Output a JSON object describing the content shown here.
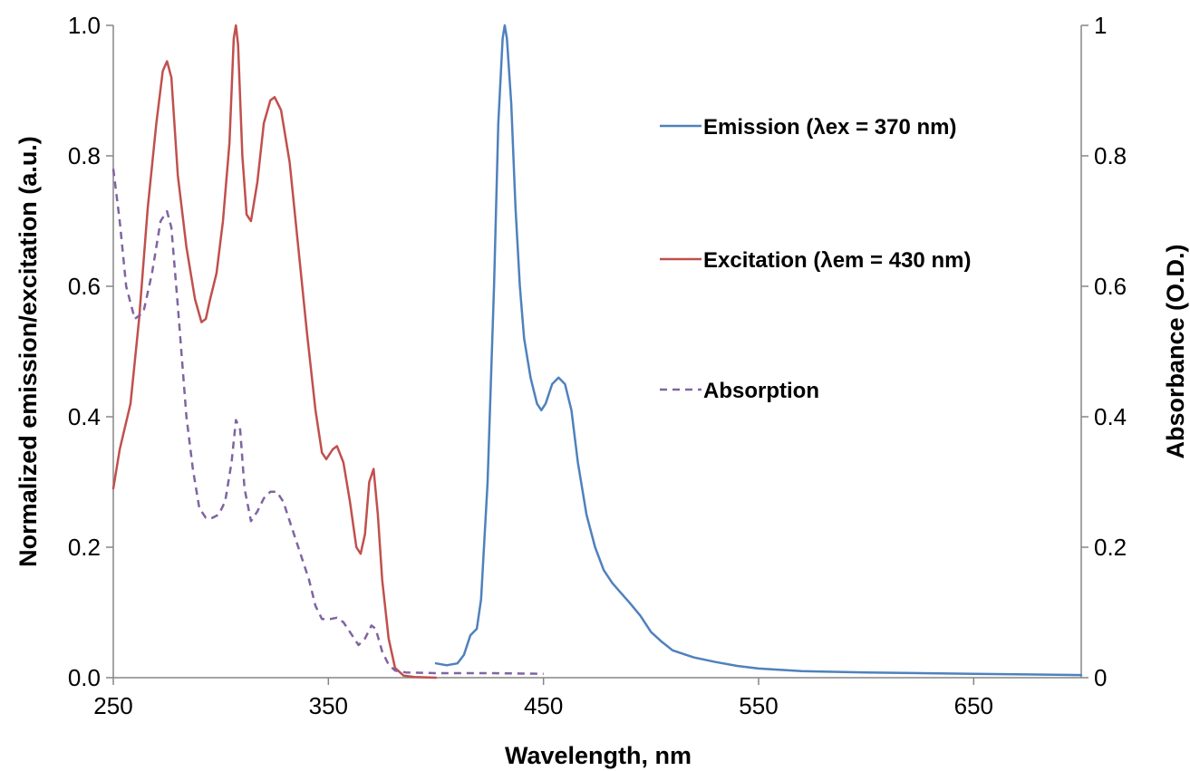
{
  "chart_data": {
    "type": "line",
    "title": "",
    "xlabel": "Wavelength, nm",
    "ylabel": "Normalized emission/excitation (a.u.)",
    "y2label": "Absorbance (O.D.)",
    "xlim": [
      250,
      700
    ],
    "ylim": [
      0,
      1
    ],
    "y2lim": [
      0,
      1
    ],
    "x_ticks": [
      "250",
      "350",
      "450",
      "550",
      "650"
    ],
    "y_ticks": [
      "0.0",
      "0.2",
      "0.4",
      "0.6",
      "0.8",
      "1.0"
    ],
    "y2_ticks": [
      "0",
      "0.2",
      "0.4",
      "0.6",
      "0.8",
      "1"
    ],
    "grid": false,
    "legend_position": "top-right, inside plot",
    "series": [
      {
        "name": "Emission (λex = 370 nm)",
        "color": "#4f81bd",
        "dash": "solid",
        "axis": "left",
        "points": [
          [
            400,
            0.022
          ],
          [
            405,
            0.019
          ],
          [
            410,
            0.022
          ],
          [
            413,
            0.035
          ],
          [
            416,
            0.065
          ],
          [
            419,
            0.075
          ],
          [
            421,
            0.12
          ],
          [
            424,
            0.3
          ],
          [
            427,
            0.6
          ],
          [
            429,
            0.85
          ],
          [
            431,
            0.98
          ],
          [
            432,
            1.0
          ],
          [
            433,
            0.98
          ],
          [
            435,
            0.88
          ],
          [
            437,
            0.72
          ],
          [
            439,
            0.6
          ],
          [
            441,
            0.52
          ],
          [
            444,
            0.46
          ],
          [
            447,
            0.42
          ],
          [
            449,
            0.41
          ],
          [
            451,
            0.42
          ],
          [
            454,
            0.45
          ],
          [
            457,
            0.46
          ],
          [
            460,
            0.45
          ],
          [
            463,
            0.41
          ],
          [
            466,
            0.33
          ],
          [
            470,
            0.25
          ],
          [
            474,
            0.2
          ],
          [
            478,
            0.165
          ],
          [
            482,
            0.145
          ],
          [
            486,
            0.13
          ],
          [
            490,
            0.115
          ],
          [
            495,
            0.095
          ],
          [
            500,
            0.07
          ],
          [
            505,
            0.055
          ],
          [
            510,
            0.042
          ],
          [
            520,
            0.031
          ],
          [
            530,
            0.024
          ],
          [
            540,
            0.018
          ],
          [
            550,
            0.014
          ],
          [
            570,
            0.01
          ],
          [
            600,
            0.008
          ],
          [
            650,
            0.006
          ],
          [
            700,
            0.004
          ]
        ]
      },
      {
        "name": "Excitation (λem = 430 nm)",
        "color": "#c0504d",
        "dash": "solid",
        "axis": "left",
        "points": [
          [
            250,
            0.29
          ],
          [
            253,
            0.35
          ],
          [
            258,
            0.42
          ],
          [
            262,
            0.55
          ],
          [
            266,
            0.72
          ],
          [
            270,
            0.85
          ],
          [
            273,
            0.93
          ],
          [
            275,
            0.945
          ],
          [
            277,
            0.92
          ],
          [
            280,
            0.77
          ],
          [
            284,
            0.66
          ],
          [
            288,
            0.58
          ],
          [
            291,
            0.545
          ],
          [
            293,
            0.55
          ],
          [
            295,
            0.58
          ],
          [
            298,
            0.62
          ],
          [
            301,
            0.7
          ],
          [
            304,
            0.82
          ],
          [
            306,
            0.98
          ],
          [
            307,
            1.0
          ],
          [
            308,
            0.97
          ],
          [
            310,
            0.8
          ],
          [
            312,
            0.71
          ],
          [
            314,
            0.7
          ],
          [
            317,
            0.76
          ],
          [
            320,
            0.85
          ],
          [
            323,
            0.885
          ],
          [
            325,
            0.89
          ],
          [
            328,
            0.87
          ],
          [
            332,
            0.79
          ],
          [
            336,
            0.66
          ],
          [
            340,
            0.53
          ],
          [
            344,
            0.41
          ],
          [
            347,
            0.345
          ],
          [
            349,
            0.335
          ],
          [
            352,
            0.35
          ],
          [
            354,
            0.355
          ],
          [
            357,
            0.33
          ],
          [
            360,
            0.27
          ],
          [
            363,
            0.2
          ],
          [
            365,
            0.19
          ],
          [
            367,
            0.22
          ],
          [
            369,
            0.3
          ],
          [
            371,
            0.32
          ],
          [
            373,
            0.25
          ],
          [
            375,
            0.15
          ],
          [
            378,
            0.06
          ],
          [
            381,
            0.015
          ],
          [
            385,
            0.003
          ],
          [
            390,
            0.001
          ],
          [
            400,
            0.0
          ]
        ]
      },
      {
        "name": "Absorption",
        "color": "#8064a2",
        "dash": "dashed",
        "axis": "right",
        "points": [
          [
            250,
            0.78
          ],
          [
            253,
            0.7
          ],
          [
            256,
            0.6
          ],
          [
            260,
            0.55
          ],
          [
            264,
            0.56
          ],
          [
            268,
            0.62
          ],
          [
            272,
            0.7
          ],
          [
            275,
            0.715
          ],
          [
            277,
            0.69
          ],
          [
            280,
            0.57
          ],
          [
            284,
            0.4
          ],
          [
            287,
            0.32
          ],
          [
            290,
            0.26
          ],
          [
            293,
            0.245
          ],
          [
            296,
            0.245
          ],
          [
            299,
            0.25
          ],
          [
            302,
            0.27
          ],
          [
            305,
            0.33
          ],
          [
            307,
            0.395
          ],
          [
            309,
            0.38
          ],
          [
            311,
            0.29
          ],
          [
            314,
            0.24
          ],
          [
            317,
            0.255
          ],
          [
            320,
            0.275
          ],
          [
            323,
            0.285
          ],
          [
            326,
            0.285
          ],
          [
            329,
            0.27
          ],
          [
            333,
            0.23
          ],
          [
            337,
            0.19
          ],
          [
            341,
            0.15
          ],
          [
            344,
            0.11
          ],
          [
            347,
            0.09
          ],
          [
            351,
            0.09
          ],
          [
            354,
            0.092
          ],
          [
            357,
            0.085
          ],
          [
            360,
            0.07
          ],
          [
            364,
            0.05
          ],
          [
            367,
            0.06
          ],
          [
            370,
            0.08
          ],
          [
            372,
            0.075
          ],
          [
            375,
            0.04
          ],
          [
            378,
            0.02
          ],
          [
            381,
            0.011
          ],
          [
            386,
            0.008
          ],
          [
            400,
            0.007
          ],
          [
            425,
            0.007
          ],
          [
            450,
            0.006
          ]
        ]
      }
    ]
  }
}
